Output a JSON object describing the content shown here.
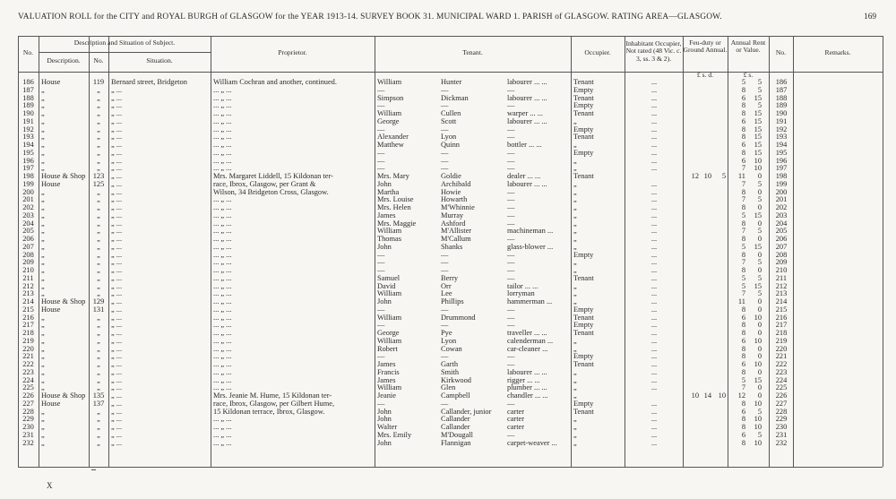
{
  "header": {
    "title": "VALUATION ROLL for the CITY and ROYAL BURGH of GLASGOW for the YEAR 1913-14.   SURVEY BOOK 31.   MUNICIPAL WARD 1.   PARISH of GLASGOW.   RATING AREA—GLASGOW.",
    "page": "169"
  },
  "table": {
    "columns": {
      "no": "No.",
      "group": "Description and Situation of Subject.",
      "description": "Description.",
      "number": "No.",
      "situation": "Situation.",
      "proprietor": "Proprietor.",
      "tenant": "Tenant.",
      "occupier": "Occupier.",
      "inhabitant": "Inhabitant Occupier, Not rated (48 Vic. c. 3, ss. 3 & 2).",
      "feu": "Feu-duty or Ground Annual.",
      "rent": "Annual Rent or Value.",
      "no2": "No.",
      "remarks": "Remarks.",
      "feu_units": "£   s.   d.",
      "rent_units": "£   s."
    },
    "rows": [
      [
        "186",
        "House",
        "119",
        "Bernard street, Bridgeton",
        "William Cochran and another, continued.",
        "William",
        "Hunter",
        "labourer ... ...",
        "Tenant",
        "...",
        null,
        null,
        null,
        "5",
        "5",
        "186"
      ],
      [
        "187",
        "„",
        "„",
        "„ ...",
        "... „ ...",
        "—",
        "—",
        "—",
        "Empty",
        "...",
        null,
        null,
        null,
        "8",
        "5",
        "187"
      ],
      [
        "188",
        "„",
        "„",
        "„ ...",
        "... „ ...",
        "Simpson",
        "Dickman",
        "labourer ... ...",
        "Tenant",
        "...",
        null,
        null,
        null,
        "6",
        "15",
        "188"
      ],
      [
        "189",
        "„",
        "„",
        "„ ...",
        "... „ ...",
        "—",
        "—",
        "—",
        "Empty",
        "...",
        null,
        null,
        null,
        "8",
        "5",
        "189"
      ],
      [
        "190",
        "„",
        "„",
        "„ ...",
        "... „ ...",
        "William",
        "Cullen",
        "warper ... ...",
        "Tenant",
        "...",
        null,
        null,
        null,
        "8",
        "15",
        "190"
      ],
      [
        "191",
        "„",
        "„",
        "„ ...",
        "... „ ...",
        "George",
        "Scott",
        "labourer ... ...",
        "„",
        "...",
        null,
        null,
        null,
        "6",
        "15",
        "191"
      ],
      [
        "192",
        "„",
        "„",
        "„ ...",
        "... „ ...",
        "—",
        "—",
        "—",
        "Empty",
        "...",
        null,
        null,
        null,
        "8",
        "15",
        "192"
      ],
      [
        "193",
        "„",
        "„",
        "„ ...",
        "... „ ...",
        "Alexander",
        "Lyon",
        "—",
        "Tenant",
        "...",
        null,
        null,
        null,
        "8",
        "15",
        "193"
      ],
      [
        "194",
        "„",
        "„",
        "„ ...",
        "... „ ...",
        "Matthew",
        "Quinn",
        "bottler ... ...",
        "„",
        "...",
        null,
        null,
        null,
        "6",
        "15",
        "194"
      ],
      [
        "195",
        "„",
        "„",
        "„ ...",
        "... „ ...",
        "—",
        "—",
        "—",
        "Empty",
        "...",
        null,
        null,
        null,
        "8",
        "15",
        "195"
      ],
      [
        "196",
        "„",
        "„",
        "„ ...",
        "... „ ...",
        "—",
        "—",
        "—",
        "„",
        "...",
        null,
        null,
        null,
        "6",
        "10",
        "196"
      ],
      [
        "197",
        "„",
        "„",
        "„ ...",
        "... „ ...",
        "—",
        "—",
        "—",
        "„",
        "...",
        null,
        null,
        null,
        "7",
        "10",
        "197"
      ],
      [
        "198",
        "House & Shop",
        "123",
        "„ ...",
        "Mrs. Margaret Liddell, 15 Kildonan ter-",
        "Mrs. Mary",
        "Goldie",
        "dealer ... ...",
        "Tenant",
        null,
        "12",
        "10",
        "5",
        "11",
        "0",
        "198"
      ],
      [
        "199",
        "House",
        "125",
        "„ ...",
        "race, Ibrox, Glasgow, per Grant &",
        "John",
        "Archibald",
        "labourer ... ...",
        "„",
        "...",
        null,
        null,
        null,
        "7",
        "5",
        "199"
      ],
      [
        "200",
        "„",
        "„",
        "„ ...",
        "Wilson, 34 Bridgeton Cross, Glasgow.",
        "Martha",
        "Howie",
        "—",
        "„",
        "...",
        null,
        null,
        null,
        "8",
        "0",
        "200"
      ],
      [
        "201",
        "„",
        "„",
        "„ ...",
        "... „ ...",
        "Mrs. Louise",
        "Howarth",
        "—",
        "„",
        "...",
        null,
        null,
        null,
        "7",
        "5",
        "201"
      ],
      [
        "202",
        "„",
        "„",
        "„ ...",
        "... „ ...",
        "Mrs. Helen",
        "M'Whinnie",
        "—",
        "„",
        "...",
        null,
        null,
        null,
        "8",
        "0",
        "202"
      ],
      [
        "203",
        "„",
        "„",
        "„ ...",
        "... „ ...",
        "James",
        "Murray",
        "—",
        "„",
        "...",
        null,
        null,
        null,
        "5",
        "15",
        "203"
      ],
      [
        "204",
        "„",
        "„",
        "„ ...",
        "... „ ...",
        "Mrs. Maggie",
        "Ashford",
        "—",
        "„",
        "...",
        null,
        null,
        null,
        "8",
        "0",
        "204"
      ],
      [
        "205",
        "„",
        "„",
        "„ ...",
        "... „ ...",
        "William",
        "M'Allister",
        "machineman ...",
        "„",
        "...",
        null,
        null,
        null,
        "7",
        "5",
        "205"
      ],
      [
        "206",
        "„",
        "„",
        "„ ...",
        "... „ ...",
        "Thomas",
        "M'Callum",
        "—",
        "„",
        "...",
        null,
        null,
        null,
        "8",
        "0",
        "206"
      ],
      [
        "207",
        "„",
        "„",
        "„ ...",
        "... „ ...",
        "John",
        "Shanks",
        "glass-blower ...",
        "„",
        "...",
        null,
        null,
        null,
        "5",
        "15",
        "207"
      ],
      [
        "208",
        "„",
        "„",
        "„ ...",
        "... „ ...",
        "—",
        "—",
        "—",
        "Empty",
        "...",
        null,
        null,
        null,
        "8",
        "0",
        "208"
      ],
      [
        "209",
        "„",
        "„",
        "„ ...",
        "... „ ...",
        "—",
        "—",
        "—",
        "„",
        "...",
        null,
        null,
        null,
        "7",
        "5",
        "209"
      ],
      [
        "210",
        "„",
        "„",
        "„ ...",
        "... „ ...",
        "—",
        "—",
        "—",
        "„",
        "...",
        null,
        null,
        null,
        "8",
        "0",
        "210"
      ],
      [
        "211",
        "„",
        "„",
        "„ ...",
        "... „ ...",
        "Samuel",
        "Berry",
        "—",
        "Tenant",
        "...",
        null,
        null,
        null,
        "5",
        "5",
        "211"
      ],
      [
        "212",
        "„",
        "„",
        "„ ...",
        "... „ ...",
        "David",
        "Orr",
        "tailor ... ...",
        "„",
        "...",
        null,
        null,
        null,
        "5",
        "15",
        "212"
      ],
      [
        "213",
        "„",
        "„",
        "„ ...",
        "... „ ...",
        "William",
        "Lee",
        "lorryman",
        "„",
        "...",
        null,
        null,
        null,
        "7",
        "5",
        "213"
      ],
      [
        "214",
        "House & Shop",
        "129",
        "„ ...",
        "... „ ...",
        "John",
        "Phillips",
        "hammerman ...",
        "„",
        "...",
        null,
        null,
        null,
        "11",
        "0",
        "214"
      ],
      [
        "215",
        "House",
        "131",
        "„ ...",
        "... „ ...",
        "—",
        "—",
        "—",
        "Empty",
        "...",
        null,
        null,
        null,
        "8",
        "0",
        "215"
      ],
      [
        "216",
        "„",
        "„",
        "„ ...",
        "... „ ...",
        "William",
        "Drummond",
        "—",
        "Tenant",
        "...",
        null,
        null,
        null,
        "6",
        "10",
        "216"
      ],
      [
        "217",
        "„",
        "„",
        "„ ...",
        "... „ ...",
        "—",
        "—",
        "—",
        "Empty",
        "...",
        null,
        null,
        null,
        "8",
        "0",
        "217"
      ],
      [
        "218",
        "„",
        "„",
        "„ ...",
        "... „ ...",
        "George",
        "Pye",
        "traveller ... ...",
        "Tenant",
        "...",
        null,
        null,
        null,
        "8",
        "0",
        "218"
      ],
      [
        "219",
        "„",
        "„",
        "„ ...",
        "... „ ...",
        "William",
        "Lyon",
        "calenderman ...",
        "„",
        "...",
        null,
        null,
        null,
        "6",
        "10",
        "219"
      ],
      [
        "220",
        "„",
        "„",
        "„ ...",
        "... „ ...",
        "Robert",
        "Cowan",
        "car-cleaner ...",
        "„",
        "...",
        null,
        null,
        null,
        "8",
        "0",
        "220"
      ],
      [
        "221",
        "„",
        "„",
        "„ ...",
        "... „ ...",
        "—",
        "—",
        "—",
        "Empty",
        "...",
        null,
        null,
        null,
        "8",
        "0",
        "221"
      ],
      [
        "222",
        "„",
        "„",
        "„ ...",
        "... „ ...",
        "James",
        "Garth",
        "—",
        "Tenant",
        "...",
        null,
        null,
        null,
        "6",
        "10",
        "222"
      ],
      [
        "223",
        "„",
        "„",
        "„ ...",
        "... „ ...",
        "Francis",
        "Smith",
        "labourer ... ...",
        "„",
        "...",
        null,
        null,
        null,
        "8",
        "0",
        "223"
      ],
      [
        "224",
        "„",
        "„",
        "„ ...",
        "... „ ...",
        "James",
        "Kirkwood",
        "rigger ... ...",
        "„",
        "...",
        null,
        null,
        null,
        "5",
        "15",
        "224"
      ],
      [
        "225",
        "„",
        "„",
        "„ ...",
        "... „ ...",
        "William",
        "Glen",
        "plumber ... ...",
        "„",
        "...",
        null,
        null,
        null,
        "7",
        "0",
        "225"
      ],
      [
        "226",
        "House & Shop",
        "135",
        "„ ...",
        "Mrs. Jeanie M. Hume, 15 Kildonan ter-",
        "Jeanie",
        "Campbell",
        "chandler ... ...",
        "„",
        null,
        "10",
        "14",
        "10",
        "12",
        "0",
        "226"
      ],
      [
        "227",
        "House",
        "137",
        "„ ...",
        "race, Ibrox, Glasgow, per Gilbert Hume,",
        "—",
        "—",
        "—",
        "Empty",
        "...",
        null,
        null,
        null,
        "8",
        "10",
        "227"
      ],
      [
        "228",
        "„",
        "„",
        "„ ...",
        "15 Kildonan terrace, Ibrox, Glasgow.",
        "John",
        "Callander, junior",
        "carter",
        "Tenant",
        "...",
        null,
        null,
        null,
        "6",
        "5",
        "228"
      ],
      [
        "229",
        "„",
        "„",
        "„ ...",
        "... „ ...",
        "John",
        "Callander",
        "carter",
        "„",
        "...",
        null,
        null,
        null,
        "8",
        "10",
        "229"
      ],
      [
        "230",
        "„",
        "„",
        "„ ...",
        "... „ ...",
        "Walter",
        "Callander",
        "carter",
        "„",
        "...",
        null,
        null,
        null,
        "8",
        "10",
        "230"
      ],
      [
        "231",
        "„",
        "„",
        "„ ...",
        "... „ ...",
        "Mrs. Emily",
        "M'Dougall",
        "—",
        "„",
        "...",
        null,
        null,
        null,
        "6",
        "5",
        "231"
      ],
      [
        "232",
        "„",
        "„",
        "„ ...",
        "... „ ...",
        "John",
        "Flannigan",
        "carpet-weaver ...",
        "„",
        "...",
        null,
        null,
        null,
        "8",
        "10",
        "232"
      ]
    ]
  },
  "footer": {
    "mark": "X"
  }
}
